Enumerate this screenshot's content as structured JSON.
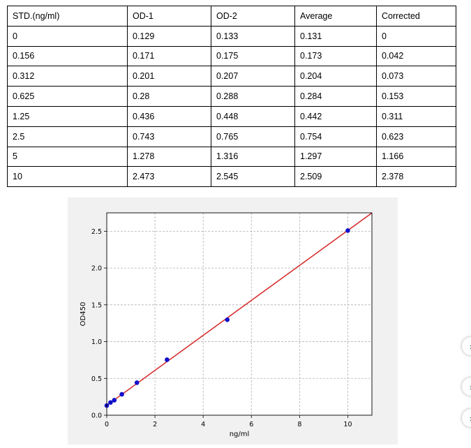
{
  "table": {
    "headers": [
      "STD.(ng/ml)",
      "OD-1",
      "OD-2",
      "Average",
      "Corrected"
    ],
    "rows": [
      [
        "0",
        "0.129",
        "0.133",
        "0.131",
        "0"
      ],
      [
        "0.156",
        "0.171",
        "0.175",
        "0.173",
        "0.042"
      ],
      [
        "0.312",
        "0.201",
        "0.207",
        "0.204",
        "0.073"
      ],
      [
        "0.625",
        "0.28",
        "0.288",
        "0.284",
        "0.153"
      ],
      [
        "1.25",
        "0.436",
        "0.448",
        "0.442",
        "0.311"
      ],
      [
        "2.5",
        "0.743",
        "0.765",
        "0.754",
        "0.623"
      ],
      [
        "5",
        "1.278",
        "1.316",
        "1.297",
        "1.166"
      ],
      [
        "10",
        "2.473",
        "2.545",
        "2.509",
        "2.378"
      ]
    ]
  },
  "chart_data": {
    "type": "scatter",
    "xlabel": "ng/ml",
    "ylabel": "OD450",
    "xlim": [
      0,
      11
    ],
    "ylim": [
      0,
      2.75
    ],
    "xticks": [
      "0",
      "2",
      "4",
      "6",
      "8",
      "10"
    ],
    "yticks": [
      "0.0",
      "0.5",
      "1.0",
      "1.5",
      "2.0",
      "2.5"
    ],
    "grid": true,
    "points": {
      "x": [
        0,
        0.156,
        0.312,
        0.625,
        1.25,
        2.5,
        5,
        10
      ],
      "y": [
        0.131,
        0.173,
        0.204,
        0.284,
        0.442,
        0.754,
        1.297,
        2.509
      ]
    },
    "fit_line": {
      "slope": 0.2377,
      "intercept": 0.134
    },
    "colors": {
      "points": "#1010cc",
      "line": "#d62728",
      "grid": "#b0b0b0"
    }
  },
  "side_buttons": [
    {
      "icon": "chevron-icon",
      "glyph": "›"
    },
    {
      "icon": "chevron-icon",
      "glyph": "›"
    },
    {
      "icon": "chevron-icon",
      "glyph": "›"
    }
  ]
}
